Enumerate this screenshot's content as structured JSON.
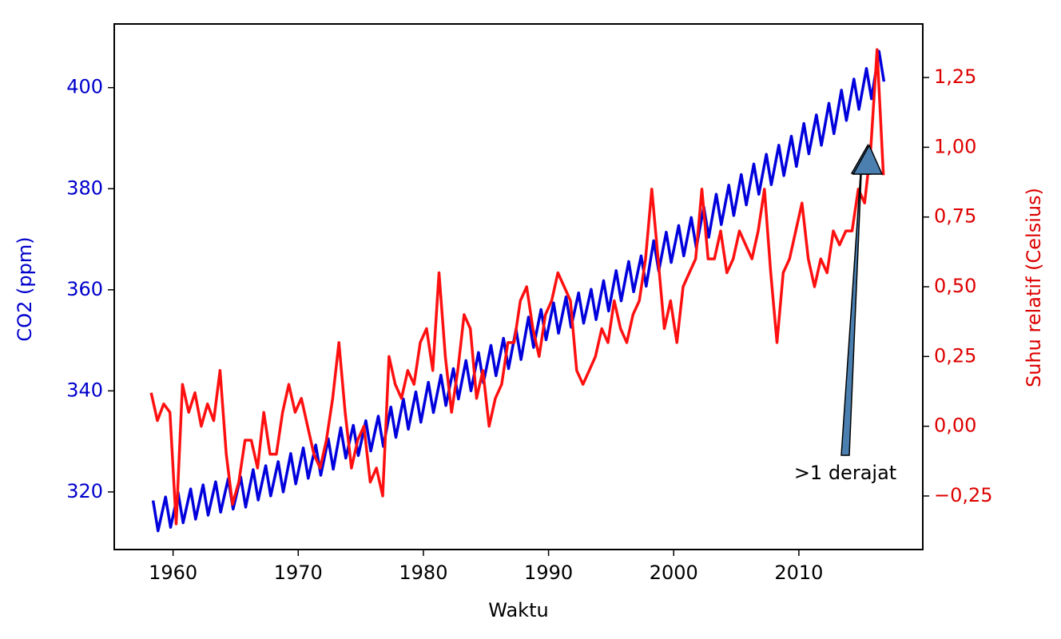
{
  "chart_data": {
    "type": "line",
    "xlabel": "Waktu",
    "ylabel": "CO2 (ppm)",
    "y2label": "Suhu relatif (Celsius)",
    "annotation": ">1 derajat",
    "xlim": [
      1955.3,
      2019.9
    ],
    "ylim": [
      308.6,
      412.6
    ],
    "y2lim": [
      -0.442,
      1.442
    ],
    "xticks": [
      1960,
      1970,
      1980,
      1990,
      2000,
      2010
    ],
    "yticks": [
      320,
      340,
      360,
      380,
      400
    ],
    "y2ticks": [
      {
        "value": -0.25,
        "label": "−0,25"
      },
      {
        "value": 0,
        "label": "0,00"
      },
      {
        "value": 0.25,
        "label": "0,25"
      },
      {
        "value": 0.5,
        "label": "0,50"
      },
      {
        "value": 0.75,
        "label": "0,75"
      },
      {
        "value": 1,
        "label": "1,00"
      },
      {
        "value": 1.25,
        "label": "1,25"
      }
    ],
    "series": [
      {
        "color": "#0000dd",
        "axis": "y",
        "x": [
          1958.4,
          1958.8,
          1959.4,
          1959.8,
          1960.4,
          1960.8,
          1961.4,
          1961.8,
          1962.4,
          1962.8,
          1963.4,
          1963.8,
          1964.4,
          1964.8,
          1965.4,
          1965.8,
          1966.4,
          1966.8,
          1967.4,
          1967.8,
          1968.4,
          1968.8,
          1969.4,
          1969.8,
          1970.4,
          1970.8,
          1971.4,
          1971.8,
          1972.4,
          1972.8,
          1973.4,
          1973.8,
          1974.4,
          1974.8,
          1975.4,
          1975.8,
          1976.4,
          1976.8,
          1977.4,
          1977.8,
          1978.4,
          1978.8,
          1979.4,
          1979.8,
          1980.4,
          1980.8,
          1981.4,
          1981.8,
          1982.4,
          1982.8,
          1983.4,
          1983.8,
          1984.4,
          1984.8,
          1985.4,
          1985.8,
          1986.4,
          1986.8,
          1987.4,
          1987.8,
          1988.4,
          1988.8,
          1989.4,
          1989.8,
          1990.4,
          1990.8,
          1991.4,
          1991.8,
          1992.4,
          1992.8,
          1993.4,
          1993.8,
          1994.4,
          1994.8,
          1995.4,
          1995.8,
          1996.4,
          1996.8,
          1997.4,
          1997.8,
          1998.4,
          1998.8,
          1999.4,
          1999.8,
          2000.4,
          2000.8,
          2001.4,
          2001.8,
          2002.4,
          2002.8,
          2003.4,
          2003.8,
          2004.4,
          2004.8,
          2005.4,
          2005.8,
          2006.4,
          2006.8,
          2007.4,
          2007.8,
          2008.4,
          2008.8,
          2009.4,
          2009.8,
          2010.4,
          2010.8,
          2011.4,
          2011.8,
          2012.4,
          2012.8,
          2013.4,
          2013.8,
          2014.4,
          2014.8,
          2015.4,
          2015.8,
          2016.4,
          2016.8
        ],
        "values": [
          318.3,
          312.3,
          319.0,
          313.0,
          319.9,
          313.9,
          320.6,
          314.6,
          321.4,
          315.4,
          322.0,
          316.0,
          322.6,
          316.6,
          323.0,
          317.0,
          324.4,
          318.4,
          325.2,
          319.2,
          326.0,
          320.0,
          327.6,
          321.6,
          328.7,
          322.7,
          329.3,
          323.3,
          330.5,
          324.5,
          332.7,
          326.7,
          333.2,
          327.2,
          334.1,
          328.1,
          335.0,
          329.0,
          336.8,
          330.8,
          338.4,
          332.4,
          339.8,
          333.8,
          341.7,
          335.7,
          343.1,
          337.1,
          344.4,
          338.4,
          346.0,
          340.0,
          347.6,
          341.6,
          349.0,
          343.0,
          350.4,
          344.4,
          352.2,
          346.2,
          354.6,
          348.6,
          356.1,
          350.1,
          357.4,
          351.4,
          358.6,
          352.6,
          359.4,
          353.4,
          360.1,
          354.1,
          361.8,
          355.8,
          363.8,
          357.8,
          365.6,
          359.6,
          366.7,
          360.7,
          369.7,
          363.7,
          371.4,
          365.4,
          372.7,
          366.7,
          374.3,
          368.3,
          376.4,
          370.4,
          378.9,
          372.9,
          380.7,
          374.7,
          382.8,
          376.8,
          384.9,
          378.9,
          386.8,
          380.8,
          388.6,
          382.6,
          390.4,
          384.4,
          392.9,
          386.9,
          394.6,
          388.6,
          396.9,
          390.9,
          399.5,
          393.5,
          401.7,
          395.7,
          403.8,
          397.8,
          407.2,
          401.2
        ]
      },
      {
        "color": "#ff1010",
        "axis": "y2",
        "x": [
          1958.25,
          1958.75,
          1959.25,
          1959.75,
          1960.25,
          1960.75,
          1961.25,
          1961.75,
          1962.25,
          1962.75,
          1963.25,
          1963.75,
          1964.25,
          1964.75,
          1965.25,
          1965.75,
          1966.25,
          1966.75,
          1967.25,
          1967.75,
          1968.25,
          1968.75,
          1969.25,
          1969.75,
          1970.25,
          1970.75,
          1971.25,
          1971.75,
          1972.25,
          1972.75,
          1973.25,
          1973.75,
          1974.25,
          1974.75,
          1975.25,
          1975.75,
          1976.25,
          1976.75,
          1977.25,
          1977.75,
          1978.25,
          1978.75,
          1979.25,
          1979.75,
          1980.25,
          1980.75,
          1981.25,
          1981.75,
          1982.25,
          1982.75,
          1983.25,
          1983.75,
          1984.25,
          1984.75,
          1985.25,
          1985.75,
          1986.25,
          1986.75,
          1987.25,
          1987.75,
          1988.25,
          1988.75,
          1989.25,
          1989.75,
          1990.25,
          1990.75,
          1991.25,
          1991.75,
          1992.25,
          1992.75,
          1993.25,
          1993.75,
          1994.25,
          1994.75,
          1995.25,
          1995.75,
          1996.25,
          1996.75,
          1997.25,
          1997.75,
          1998.25,
          1998.75,
          1999.25,
          1999.75,
          2000.25,
          2000.75,
          2001.25,
          2001.75,
          2002.25,
          2002.75,
          2003.25,
          2003.75,
          2004.25,
          2004.75,
          2005.25,
          2005.75,
          2006.25,
          2006.75,
          2007.25,
          2007.75,
          2008.25,
          2008.75,
          2009.25,
          2009.75,
          2010.25,
          2010.75,
          2011.25,
          2011.75,
          2012.25,
          2012.75,
          2013.25,
          2013.75,
          2014.25,
          2014.75,
          2015.25,
          2015.75,
          2016.25,
          2016.75
        ],
        "values": [
          0.12,
          0.02,
          0.08,
          0.05,
          -0.35,
          0.15,
          0.05,
          0.12,
          0.0,
          0.08,
          0.02,
          0.2,
          -0.1,
          -0.28,
          -0.2,
          -0.05,
          -0.05,
          -0.15,
          0.05,
          -0.1,
          -0.1,
          0.05,
          0.15,
          0.05,
          0.1,
          0.0,
          -0.1,
          -0.15,
          -0.05,
          0.1,
          0.3,
          0.05,
          -0.15,
          -0.05,
          0.0,
          -0.2,
          -0.15,
          -0.25,
          0.25,
          0.15,
          0.1,
          0.2,
          0.15,
          0.3,
          0.35,
          0.2,
          0.55,
          0.25,
          0.05,
          0.2,
          0.4,
          0.35,
          0.1,
          0.2,
          0.0,
          0.1,
          0.15,
          0.3,
          0.3,
          0.45,
          0.5,
          0.35,
          0.25,
          0.4,
          0.45,
          0.55,
          0.5,
          0.45,
          0.2,
          0.15,
          0.2,
          0.25,
          0.35,
          0.3,
          0.45,
          0.35,
          0.3,
          0.4,
          0.45,
          0.6,
          0.85,
          0.6,
          0.35,
          0.45,
          0.3,
          0.5,
          0.55,
          0.6,
          0.85,
          0.6,
          0.6,
          0.7,
          0.55,
          0.6,
          0.7,
          0.65,
          0.6,
          0.7,
          0.85,
          0.55,
          0.3,
          0.55,
          0.6,
          0.7,
          0.8,
          0.6,
          0.5,
          0.6,
          0.55,
          0.7,
          0.65,
          0.7,
          0.7,
          0.85,
          0.8,
          1.0,
          1.35,
          0.9
        ]
      }
    ]
  }
}
